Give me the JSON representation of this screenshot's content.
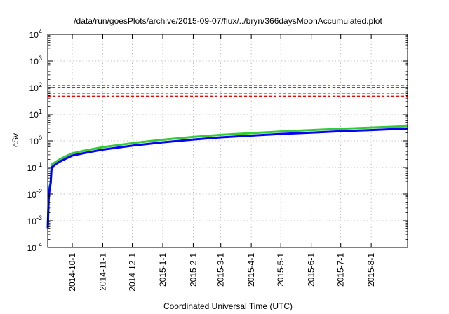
{
  "chart_data": {
    "type": "line",
    "title": "/data/run/goesPlots/archive/2015-09-07/flux/../bryn/366daysMoonAccumulated.plot",
    "xlabel": "Coordinated Universal Time (UTC)",
    "ylabel": "cSv",
    "yscale": "log",
    "ylim": [
      0.0001,
      10000
    ],
    "xlim": [
      "2014-09-06",
      "2015-09-07"
    ],
    "grid": true,
    "legend": "none",
    "x_ticks": [
      "2014-10-1",
      "2014-11-1",
      "2014-12-1",
      "2015-1-1",
      "2015-2-1",
      "2015-3-1",
      "2015-4-1",
      "2015-5-1",
      "2015-6-1",
      "2015-7-1",
      "2015-8-1"
    ],
    "y_ticks": [
      {
        "value": 0.0001,
        "base": "10",
        "exp": "-4"
      },
      {
        "value": 0.001,
        "base": "10",
        "exp": "-3"
      },
      {
        "value": 0.01,
        "base": "10",
        "exp": "-2"
      },
      {
        "value": 0.1,
        "base": "10",
        "exp": "-1"
      },
      {
        "value": 1,
        "base": "10",
        "exp": "0"
      },
      {
        "value": 10,
        "base": "10",
        "exp": "1"
      },
      {
        "value": 100,
        "base": "10",
        "exp": "2"
      },
      {
        "value": 1000,
        "base": "10",
        "exp": "3"
      },
      {
        "value": 10000,
        "base": "10",
        "exp": "4"
      }
    ],
    "thresholds": [
      {
        "value": 120,
        "color": "#9933cc"
      },
      {
        "value": 100,
        "color": "#0000ff"
      },
      {
        "value": 62,
        "color": "#00cc00"
      },
      {
        "value": 47,
        "color": "#ff0000"
      }
    ],
    "series": [
      {
        "color": "#33cc33",
        "x": [
          "2014-09-06",
          "2014-09-07",
          "2014-09-08",
          "2014-09-09",
          "2014-09-10",
          "2014-09-15",
          "2014-09-20",
          "2014-09-25",
          "2014-10-01",
          "2014-10-15",
          "2014-11-01",
          "2014-12-01",
          "2015-01-01",
          "2015-02-01",
          "2015-03-01",
          "2015-04-01",
          "2015-05-01",
          "2015-06-01",
          "2015-07-01",
          "2015-08-01",
          "2015-09-07"
        ],
        "values": [
          0.0006,
          0.008,
          0.02,
          0.03,
          0.13,
          0.17,
          0.22,
          0.27,
          0.34,
          0.44,
          0.58,
          0.82,
          1.1,
          1.4,
          1.68,
          1.95,
          2.25,
          2.55,
          2.85,
          3.15,
          3.55
        ]
      },
      {
        "color": "#0000ff",
        "x": [
          "2014-09-06",
          "2014-09-07",
          "2014-09-08",
          "2014-09-09",
          "2014-09-10",
          "2014-09-15",
          "2014-09-20",
          "2014-09-25",
          "2014-10-01",
          "2014-10-15",
          "2014-11-01",
          "2014-12-01",
          "2015-01-01",
          "2015-02-01",
          "2015-03-01",
          "2015-04-01",
          "2015-05-01",
          "2015-06-01",
          "2015-07-01",
          "2015-08-01",
          "2015-09-07"
        ],
        "values": [
          0.0005,
          0.007,
          0.017,
          0.025,
          0.1,
          0.14,
          0.18,
          0.22,
          0.28,
          0.36,
          0.47,
          0.66,
          0.88,
          1.12,
          1.35,
          1.58,
          1.82,
          2.05,
          2.3,
          2.55,
          2.9
        ]
      }
    ]
  }
}
